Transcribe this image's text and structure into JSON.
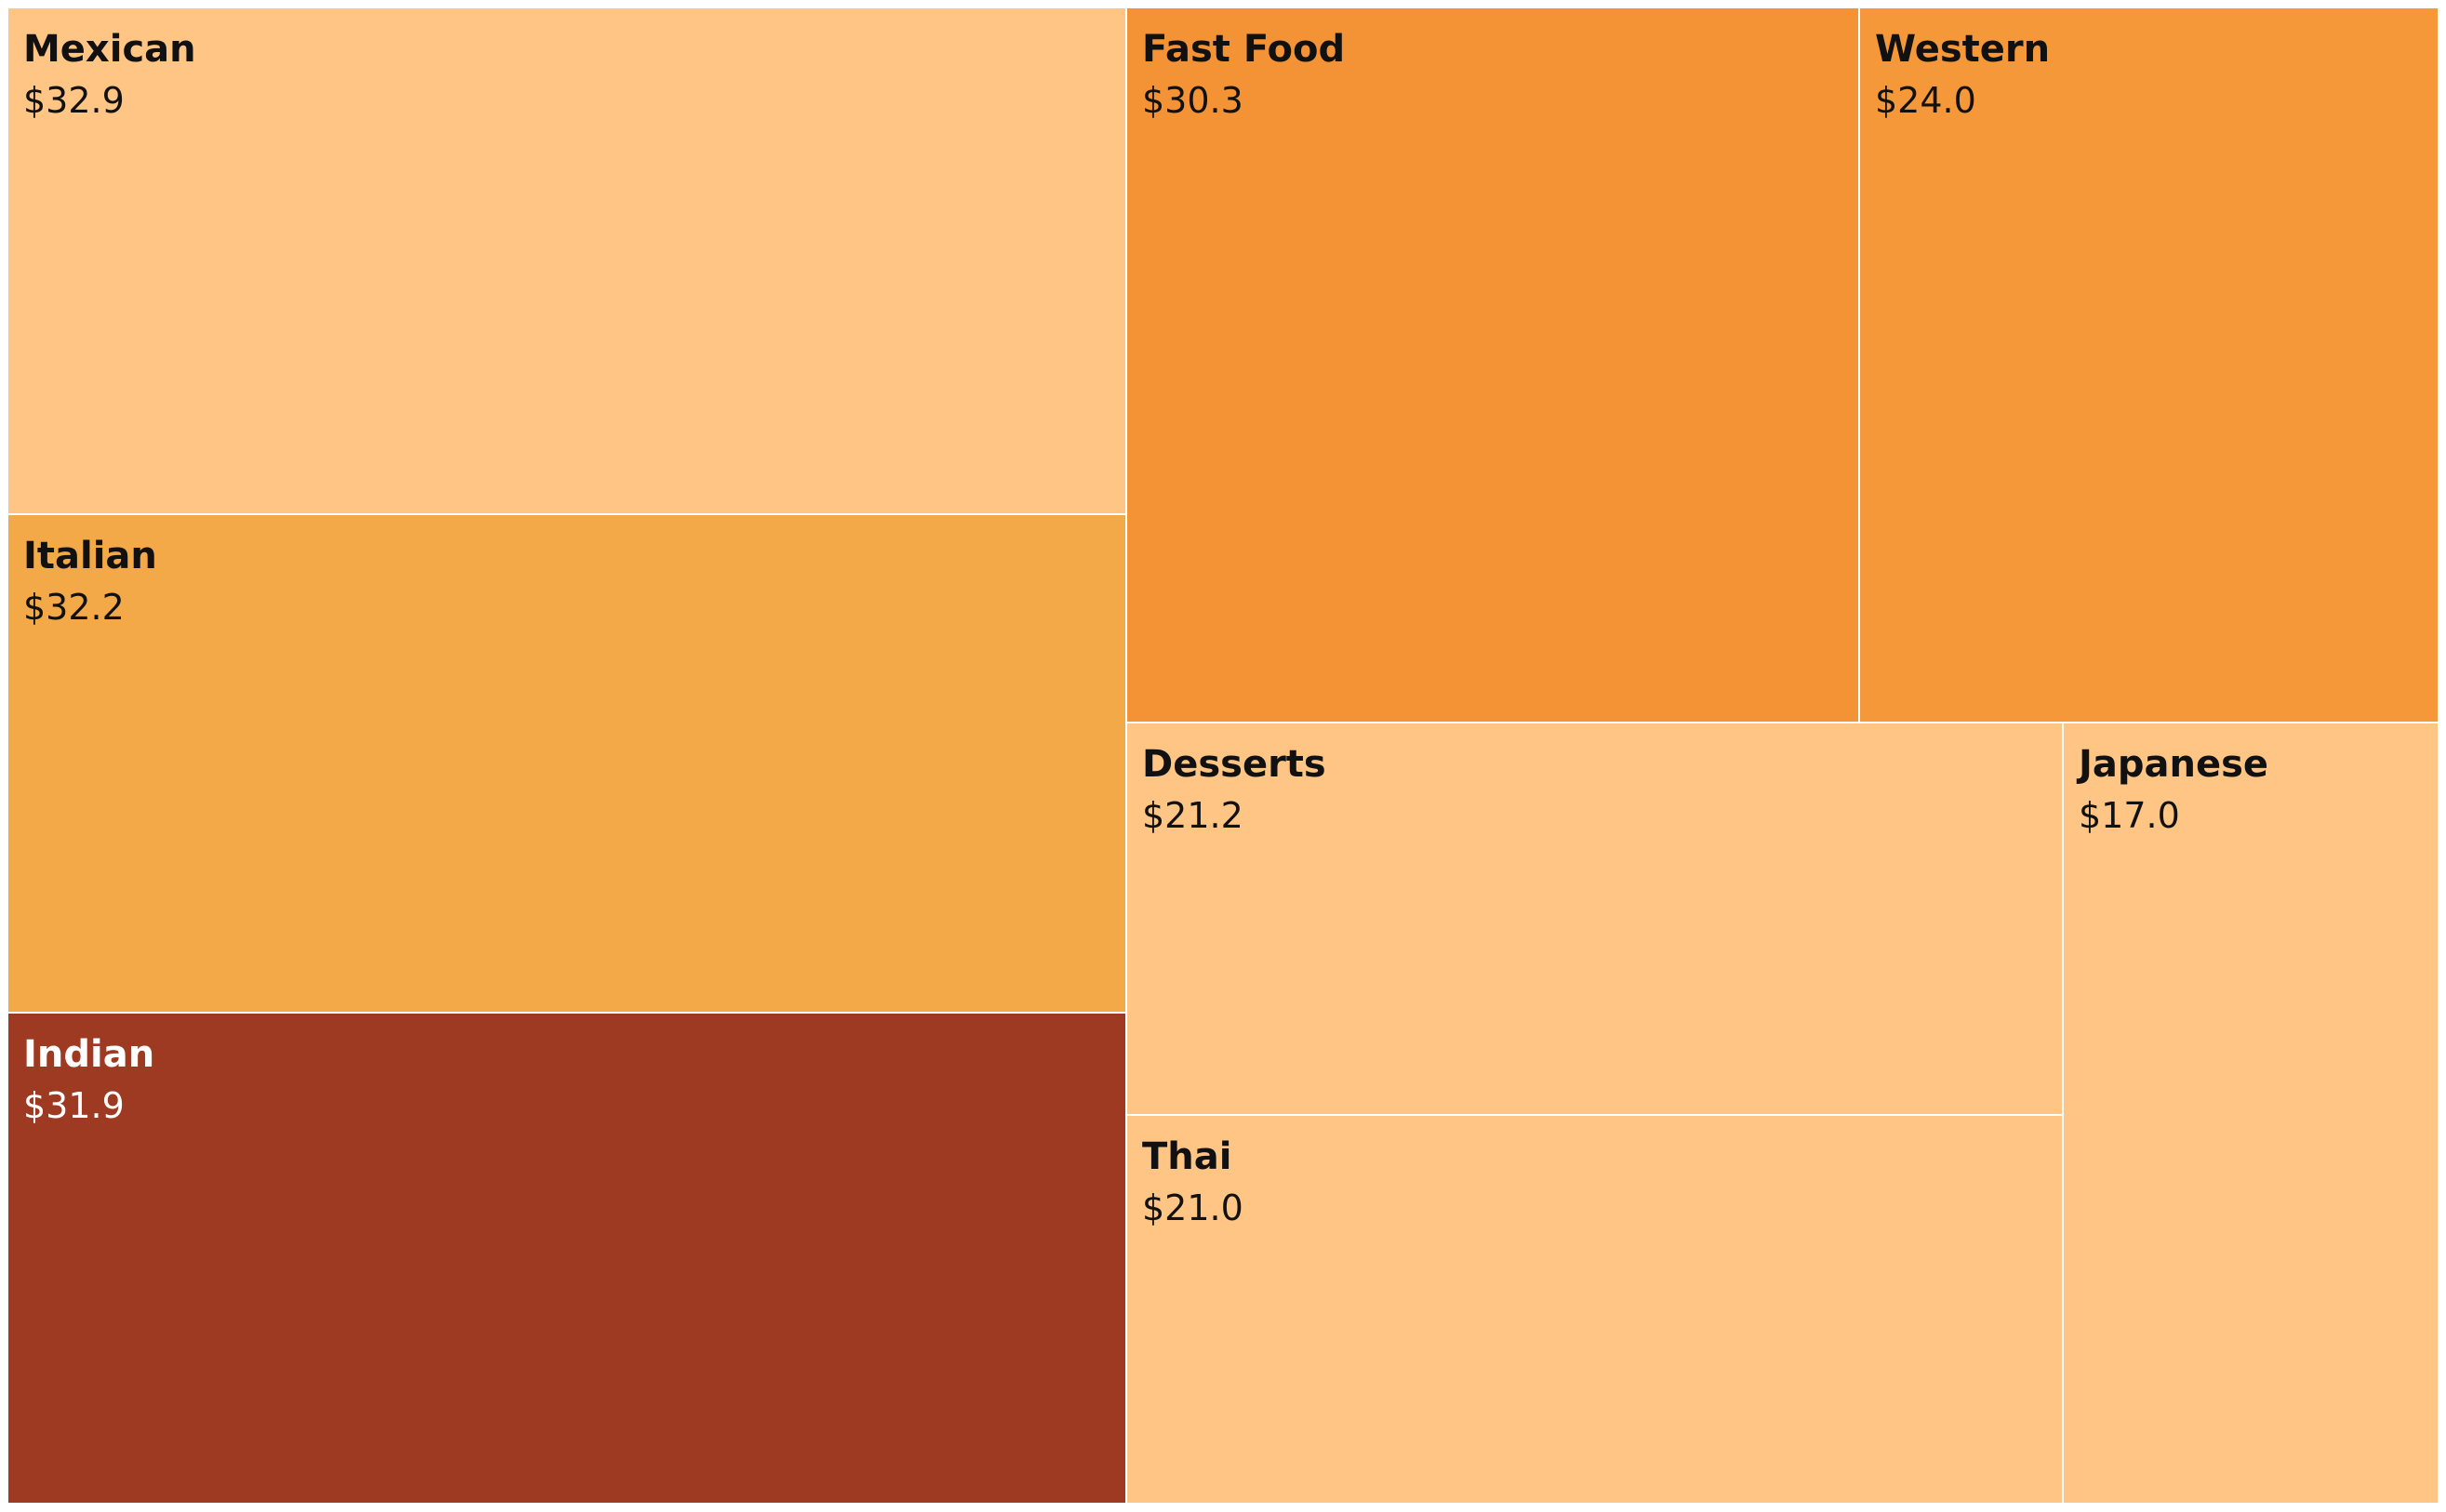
{
  "chart_data": {
    "type": "treemap",
    "title": "",
    "items": [
      {
        "label": "Mexican",
        "value_label": "$32.9",
        "value": 32.9,
        "color": "#FEC584",
        "text_color": "#111111"
      },
      {
        "label": "Italian",
        "value_label": "$32.2",
        "value": 32.2,
        "color": "#F3A947",
        "text_color": "#111111"
      },
      {
        "label": "Indian",
        "value_label": "$31.9",
        "value": 31.9,
        "color": "#9D3A21",
        "text_color": "#FFFFFF"
      },
      {
        "label": "Fast Food",
        "value_label": "$30.3",
        "value": 30.3,
        "color": "#F39335",
        "text_color": "#111111"
      },
      {
        "label": "Western",
        "value_label": "$24.0",
        "value": 24.0,
        "color": "#F49839",
        "text_color": "#111111"
      },
      {
        "label": "Desserts",
        "value_label": "$21.2",
        "value": 21.2,
        "color": "#FEC584",
        "text_color": "#111111"
      },
      {
        "label": "Thai",
        "value_label": "$21.0",
        "value": 21.0,
        "color": "#FEC584",
        "text_color": "#111111"
      },
      {
        "label": "Japanese",
        "value_label": "$17.0",
        "value": 17.0,
        "color": "#FEC584",
        "text_color": "#111111"
      }
    ]
  }
}
